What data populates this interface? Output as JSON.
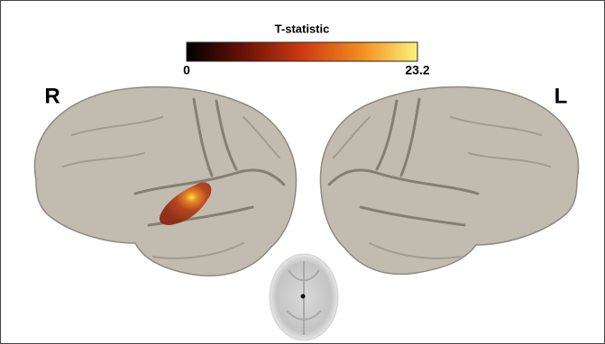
{
  "colorbar": {
    "title": "T-statistic",
    "min": 0,
    "max": 23.2
  },
  "hemispheres": {
    "right": "R",
    "left": "L"
  }
}
